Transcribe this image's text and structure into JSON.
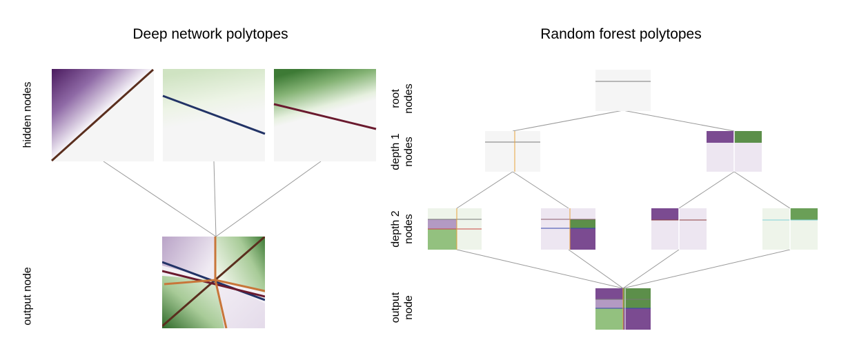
{
  "left_panel": {
    "title": "Deep network polytopes",
    "row_labels": {
      "hidden": "hidden nodes",
      "output": "output node"
    }
  },
  "right_panel": {
    "title": "Random forest polytopes",
    "row_labels": {
      "root": [
        "root",
        "nodes"
      ],
      "depth1": [
        "depth 1",
        "nodes"
      ],
      "depth2": [
        "depth 2",
        "nodes"
      ],
      "output": [
        "output",
        "node"
      ]
    }
  },
  "colors": {
    "purple": "#5b2a6e",
    "purple_light": "#e9e0ee",
    "green": "#3f7a33",
    "green_light": "#e4efdc",
    "grey_bg": "#f5f5f5",
    "brown": "#5a2e1e",
    "navy": "#223366",
    "maroon": "#6a1a2e",
    "orange": "#c8763a",
    "edge": "#888888"
  }
}
